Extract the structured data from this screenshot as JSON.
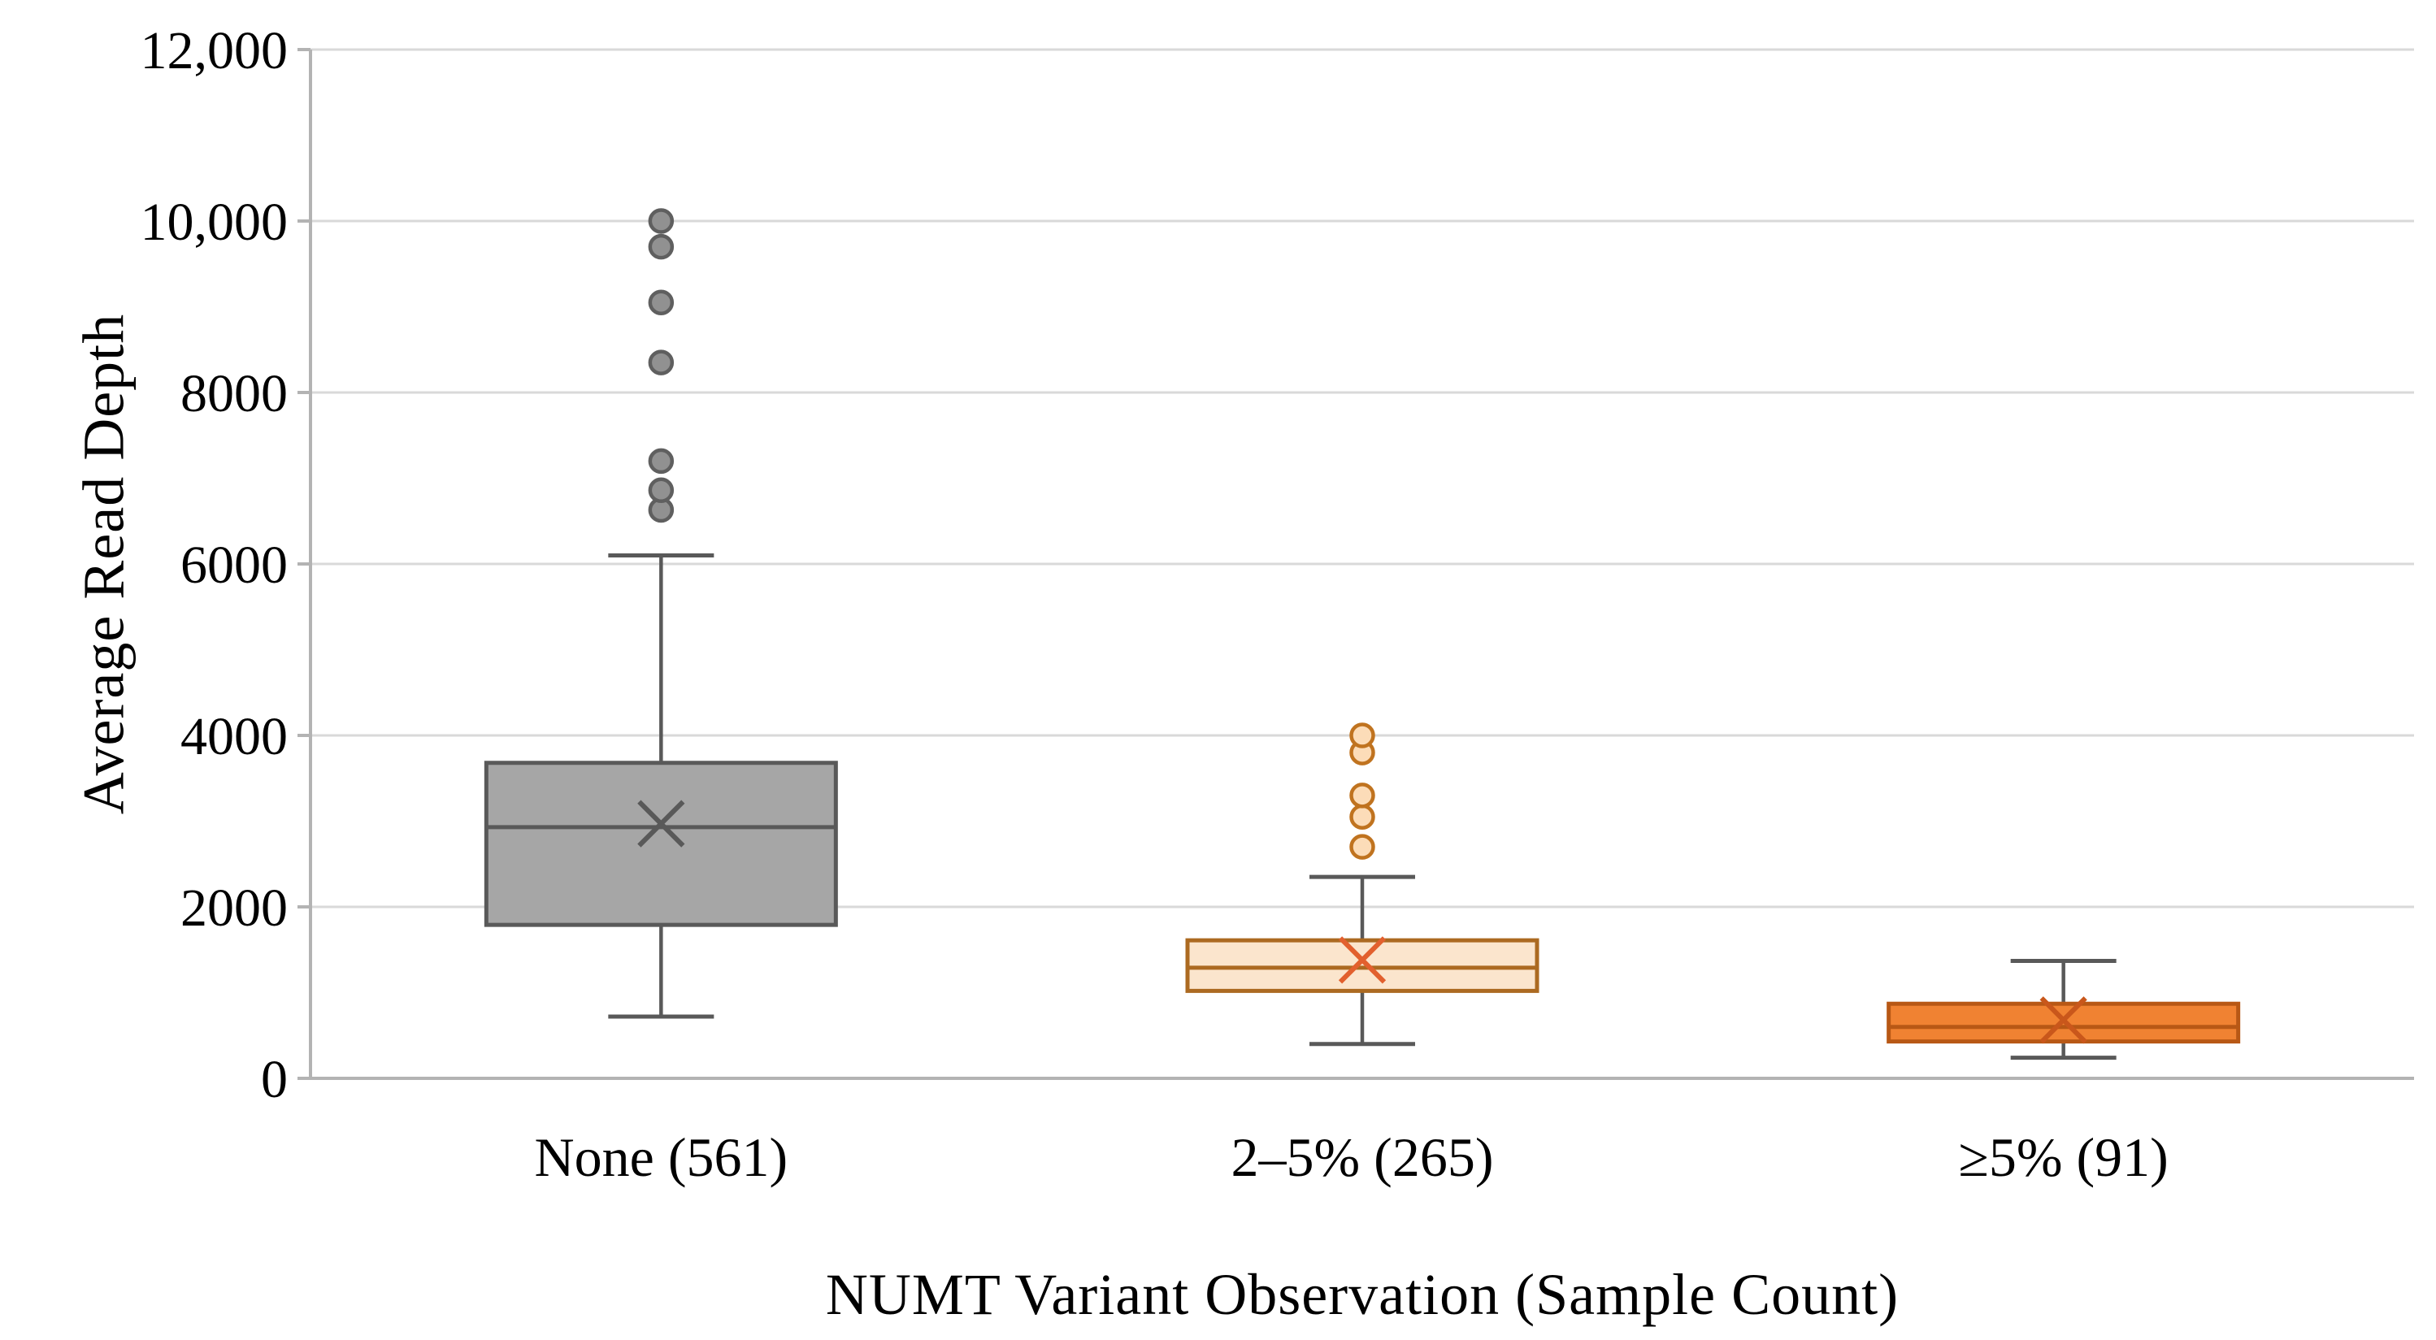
{
  "chart_data": {
    "type": "boxplot",
    "title": "",
    "xlabel": "NUMT Variant Observation (Sample Count)",
    "ylabel": "Average Read Depth",
    "ylim": [
      0,
      12000
    ],
    "grid": true,
    "legend": "none",
    "yticks": [
      {
        "value": 0,
        "label": "0"
      },
      {
        "value": 2000,
        "label": "2000"
      },
      {
        "value": 4000,
        "label": "4000"
      },
      {
        "value": 6000,
        "label": "6000"
      },
      {
        "value": 8000,
        "label": "8000"
      },
      {
        "value": 10000,
        "label": "10,000"
      },
      {
        "value": 12000,
        "label": "12,000"
      }
    ],
    "categories": [
      "None (561)",
      "2–5% (265)",
      "≥5% (91)"
    ],
    "series": [
      {
        "category": "None (561)",
        "whisker_low": 720,
        "q1": 1790,
        "median": 2930,
        "mean": 2970,
        "q3": 3680,
        "whisker_high": 6100,
        "outliers": [
          6630,
          6860,
          7200,
          8350,
          9050,
          9700,
          10000
        ],
        "style": {
          "fill": "#a6a6a6",
          "stroke": "#595959",
          "median": "#595959",
          "whisker": "#595959",
          "mean": "#595959",
          "outlier_fill": "#919191",
          "outlier_stroke": "#5f5f5f"
        }
      },
      {
        "category": "2–5% (265)",
        "whisker_low": 400,
        "q1": 1020,
        "median": 1290,
        "mean": 1380,
        "q3": 1610,
        "whisker_high": 2350,
        "outliers": [
          2700,
          3050,
          3300,
          3800,
          4000
        ],
        "style": {
          "fill": "#fbe5cd",
          "stroke": "#ac6a21",
          "median": "#ac6a21",
          "whisker": "#595959",
          "mean": "#e2602e",
          "outlier_fill": "#fcdcb8",
          "outlier_stroke": "#c0731f"
        }
      },
      {
        "category": "≥5% (91)",
        "whisker_low": 240,
        "q1": 430,
        "median": 600,
        "mean": 680,
        "q3": 870,
        "whisker_high": 1370,
        "outliers": [],
        "style": {
          "fill": "#f08232",
          "stroke": "#b85815",
          "median": "#b85815",
          "whisker": "#595959",
          "mean": "#c9571b",
          "outlier_fill": "#f4a868",
          "outlier_stroke": "#b85815"
        }
      }
    ],
    "axis_colors": {
      "axis_line": "#b3b3b3",
      "gridline": "#d9d9d9",
      "tick": "#b3b3b3",
      "text": "#000000"
    }
  }
}
